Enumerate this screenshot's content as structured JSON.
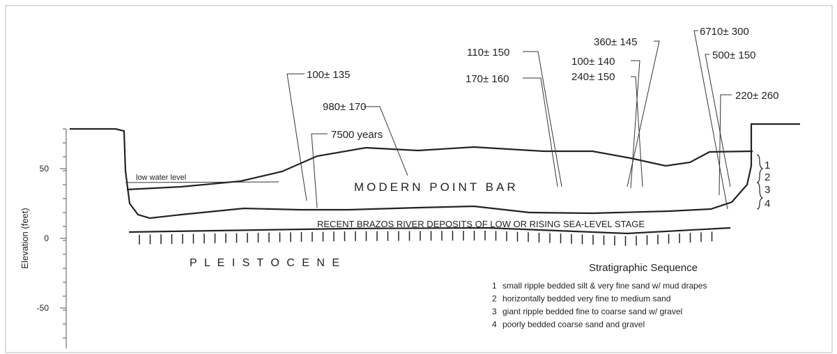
{
  "axis": {
    "label": "Elevation (feet)",
    "ticks": [
      50,
      0,
      -50
    ]
  },
  "dates": [
    "100± 135",
    "980± 170",
    "7500 years",
    "110± 150",
    "170± 160",
    "360± 145",
    "100± 140",
    "240± 150",
    "6710± 300",
    "500± 150",
    "220± 260"
  ],
  "labels": {
    "low_water": "low water level",
    "point_bar": "MODERN POINT BAR",
    "recent": "RECENT BRAZOS RIVER DEPOSITS OF LOW OR RISING SEA-LEVEL STAGE",
    "pleistocene": "P L E I S T O C E N E"
  },
  "units": [
    "1",
    "2",
    "3",
    "4"
  ],
  "legend": {
    "title": "Stratigraphic Sequence",
    "items": [
      {
        "number": "1",
        "text": "small ripple bedded silt & very fine sand w/ mud drapes"
      },
      {
        "number": "2",
        "text": "horizontally bedded very fine to medium sand"
      },
      {
        "number": "3",
        "text": "giant ripple bedded fine to coarse sand w/ gravel"
      },
      {
        "number": "4",
        "text": "poorly bedded coarse sand and gravel"
      }
    ]
  }
}
